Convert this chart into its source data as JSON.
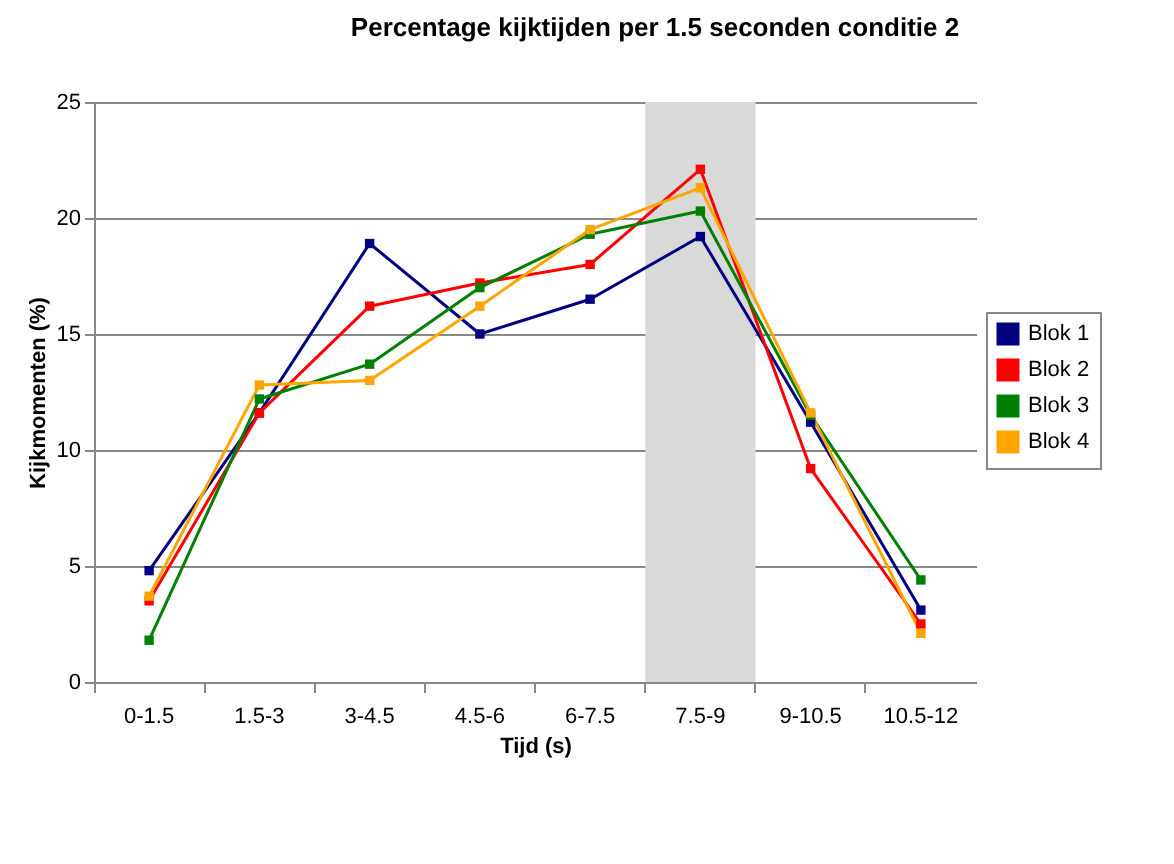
{
  "chart_data": {
    "type": "line",
    "title": "Percentage kijktijden per 1.5 seconden conditie 2",
    "xlabel": "Tijd (s)",
    "ylabel": "Kijkmomenten (%)",
    "categories": [
      "0-1.5",
      "1.5-3",
      "3-4.5",
      "4.5-6",
      "6-7.5",
      "7.5-9",
      "9-10.5",
      "10.5-12"
    ],
    "series": [
      {
        "name": "Blok 1",
        "color": "#000080",
        "values": [
          4.8,
          11.6,
          18.9,
          15.0,
          16.5,
          19.2,
          11.2,
          3.1
        ]
      },
      {
        "name": "Blok 2",
        "color": "#ff0000",
        "values": [
          3.5,
          11.6,
          16.2,
          17.2,
          18.0,
          22.1,
          9.2,
          2.5
        ]
      },
      {
        "name": "Blok 3",
        "color": "#008000",
        "values": [
          1.8,
          12.2,
          13.7,
          17.0,
          19.3,
          20.3,
          11.5,
          4.4
        ]
      },
      {
        "name": "Blok 4",
        "color": "#ffa500",
        "values": [
          3.7,
          12.8,
          13.0,
          16.2,
          19.5,
          21.3,
          11.6,
          2.1
        ]
      }
    ],
    "ylim": [
      0,
      25
    ],
    "yticks": [
      0,
      5,
      10,
      15,
      20,
      25
    ],
    "grid": "y",
    "legend": "right",
    "marker": "square",
    "bands": [
      {
        "axis": "x",
        "from": "7.5-9",
        "to": "7.5-9",
        "color": "#d9d9d9"
      }
    ]
  }
}
